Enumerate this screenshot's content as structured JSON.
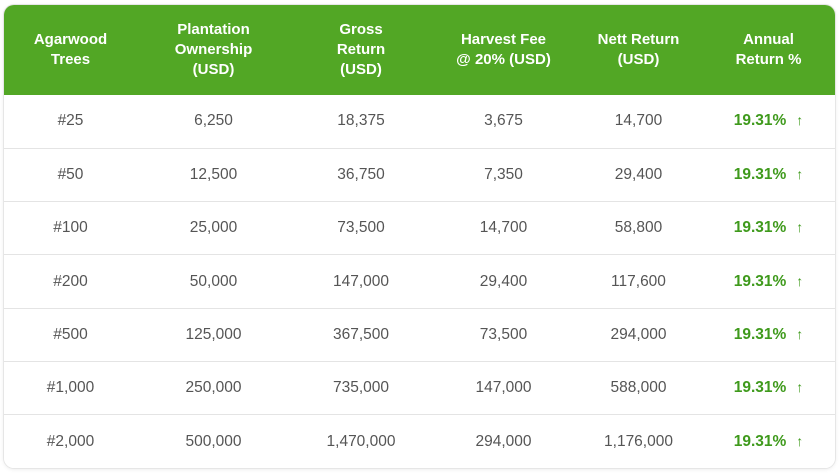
{
  "table": {
    "headers": [
      [
        "Agarwood",
        "Trees"
      ],
      [
        "Plantation",
        "Ownership",
        "(USD)"
      ],
      [
        "Gross",
        "Return",
        "(USD)"
      ],
      [
        "Harvest Fee",
        "@ 20% (USD)"
      ],
      [
        "Nett Return",
        "(USD)"
      ],
      [
        "Annual",
        "Return %"
      ]
    ],
    "rows": [
      [
        "#25",
        "6,250",
        "18,375",
        "3,675",
        "14,700",
        "19.31%"
      ],
      [
        "#50",
        "12,500",
        "36,750",
        "7,350",
        "29,400",
        "19.31%"
      ],
      [
        "#100",
        "25,000",
        "73,500",
        "14,700",
        "58,800",
        "19.31%"
      ],
      [
        "#200",
        "50,000",
        "147,000",
        "29,400",
        "117,600",
        "19.31%"
      ],
      [
        "#500",
        "125,000",
        "367,500",
        "73,500",
        "294,000",
        "19.31%"
      ],
      [
        "#1,000",
        "250,000",
        "735,000",
        "147,000",
        "588,000",
        "19.31%"
      ],
      [
        "#2,000",
        "500,000",
        "1,470,000",
        "294,000",
        "1,176,000",
        "19.31%"
      ]
    ],
    "return_arrow": "↑",
    "arrow_icon_name": "arrow-up-icon",
    "colors": {
      "header_bg": "#52a725",
      "return_text": "#3f9a1c"
    }
  }
}
